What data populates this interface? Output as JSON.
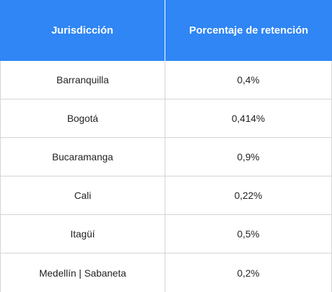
{
  "table": {
    "headers": [
      "Jurisdicción",
      "Porcentaje de retención"
    ],
    "rows": [
      [
        "Barranquilla",
        "0,4%"
      ],
      [
        "Bogotá",
        "0,414%"
      ],
      [
        "Bucaramanga",
        "0,9%"
      ],
      [
        "Cali",
        "0,22%"
      ],
      [
        "Itagüí",
        "0,5%"
      ],
      [
        "Medellín | Sabaneta",
        "0,2%"
      ]
    ]
  },
  "colors": {
    "header_background": "#2f86f4",
    "header_text": "#ffffff",
    "body_text": "#222222",
    "grid_line": "#d4d4d4"
  }
}
